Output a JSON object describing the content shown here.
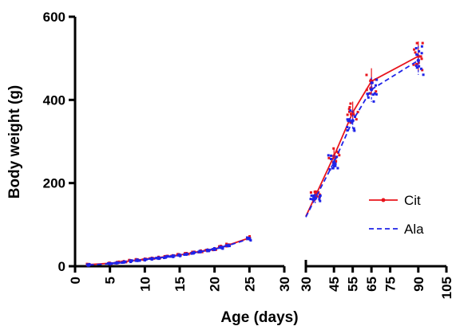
{
  "chart_data": {
    "type": "scatter",
    "title": "",
    "xlabel": "Age (days)",
    "ylabel": "Body weight (g)",
    "ylim": [
      0,
      600
    ],
    "yticks": [
      0,
      200,
      400,
      600
    ],
    "x_segments": [
      {
        "xlim": [
          0,
          30
        ],
        "ticks": [
          0,
          5,
          10,
          15,
          20,
          25,
          30
        ]
      },
      {
        "xlim": [
          30,
          105
        ],
        "ticks": [
          30,
          45,
          55,
          65,
          75,
          90,
          105
        ]
      }
    ],
    "legend_position": "right",
    "series": [
      {
        "name": "Cit",
        "color": "#e8141c",
        "line_style": "solid",
        "x": [
          2,
          5,
          6,
          7,
          8,
          9,
          10,
          11,
          12,
          13,
          14,
          15,
          16,
          17,
          18,
          19,
          20,
          21,
          22,
          25,
          30,
          35,
          45,
          55,
          65,
          90
        ],
        "y": [
          4,
          7,
          9,
          11,
          13,
          15,
          17,
          19,
          21,
          23,
          25,
          27,
          30,
          33,
          36,
          39,
          42,
          46,
          51,
          68,
          120,
          168,
          265,
          370,
          445,
          505
        ]
      },
      {
        "name": "Ala",
        "color": "#1f23e8",
        "line_style": "dashed",
        "x": [
          2,
          5,
          6,
          7,
          8,
          9,
          10,
          11,
          12,
          13,
          14,
          15,
          16,
          17,
          18,
          19,
          20,
          21,
          22,
          25,
          30,
          35,
          45,
          55,
          65,
          90
        ],
        "y": [
          3,
          6,
          8,
          10,
          12,
          14,
          16,
          18,
          20,
          22,
          24,
          26,
          29,
          32,
          35,
          38,
          41,
          45,
          50,
          66,
          118,
          163,
          250,
          350,
          425,
          495
        ]
      }
    ]
  }
}
